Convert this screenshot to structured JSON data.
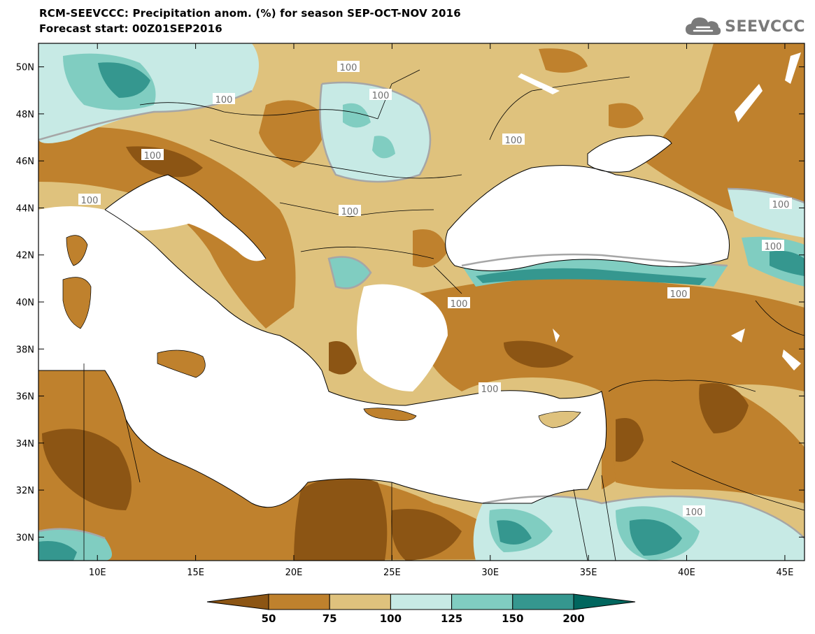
{
  "header": {
    "title_line1": "RCM-SEEVCCC: Precipitation anom. (%) for season SEP-OCT-NOV 2016",
    "title_line2": "Forecast start: 00Z01SEP2016",
    "logo_text": "SEEVCCC",
    "logo_icon": "cloud-icon"
  },
  "map": {
    "lon_range": [
      7,
      46
    ],
    "lat_range": [
      29,
      51
    ],
    "lat_ticks": [
      "50N",
      "48N",
      "46N",
      "44N",
      "42N",
      "40N",
      "38N",
      "36N",
      "34N",
      "32N",
      "30N"
    ],
    "lon_ticks": [
      "10E",
      "15E",
      "20E",
      "25E",
      "30E",
      "35E",
      "40E",
      "45E"
    ],
    "contour_labels": [
      "100",
      "100",
      "100",
      "100",
      "100",
      "100",
      "100",
      "100",
      "100",
      "100",
      "100",
      "100",
      "100"
    ]
  },
  "colorbar": {
    "bounds": [
      "50",
      "75",
      "100",
      "125",
      "150",
      "200"
    ],
    "colors": [
      "#8c5514",
      "#bf812d",
      "#dfc27d",
      "#c7eae5",
      "#80cdc1",
      "#35978f",
      "#01665e"
    ]
  },
  "colors": {
    "sea": "#ffffff",
    "dry_strong": "#8c5514",
    "dry": "#bf812d",
    "dry_light": "#dfc27d",
    "wet_light": "#c7eae5",
    "wet": "#80cdc1",
    "wet_strong": "#35978f",
    "contour": "#a6a6a6"
  }
}
